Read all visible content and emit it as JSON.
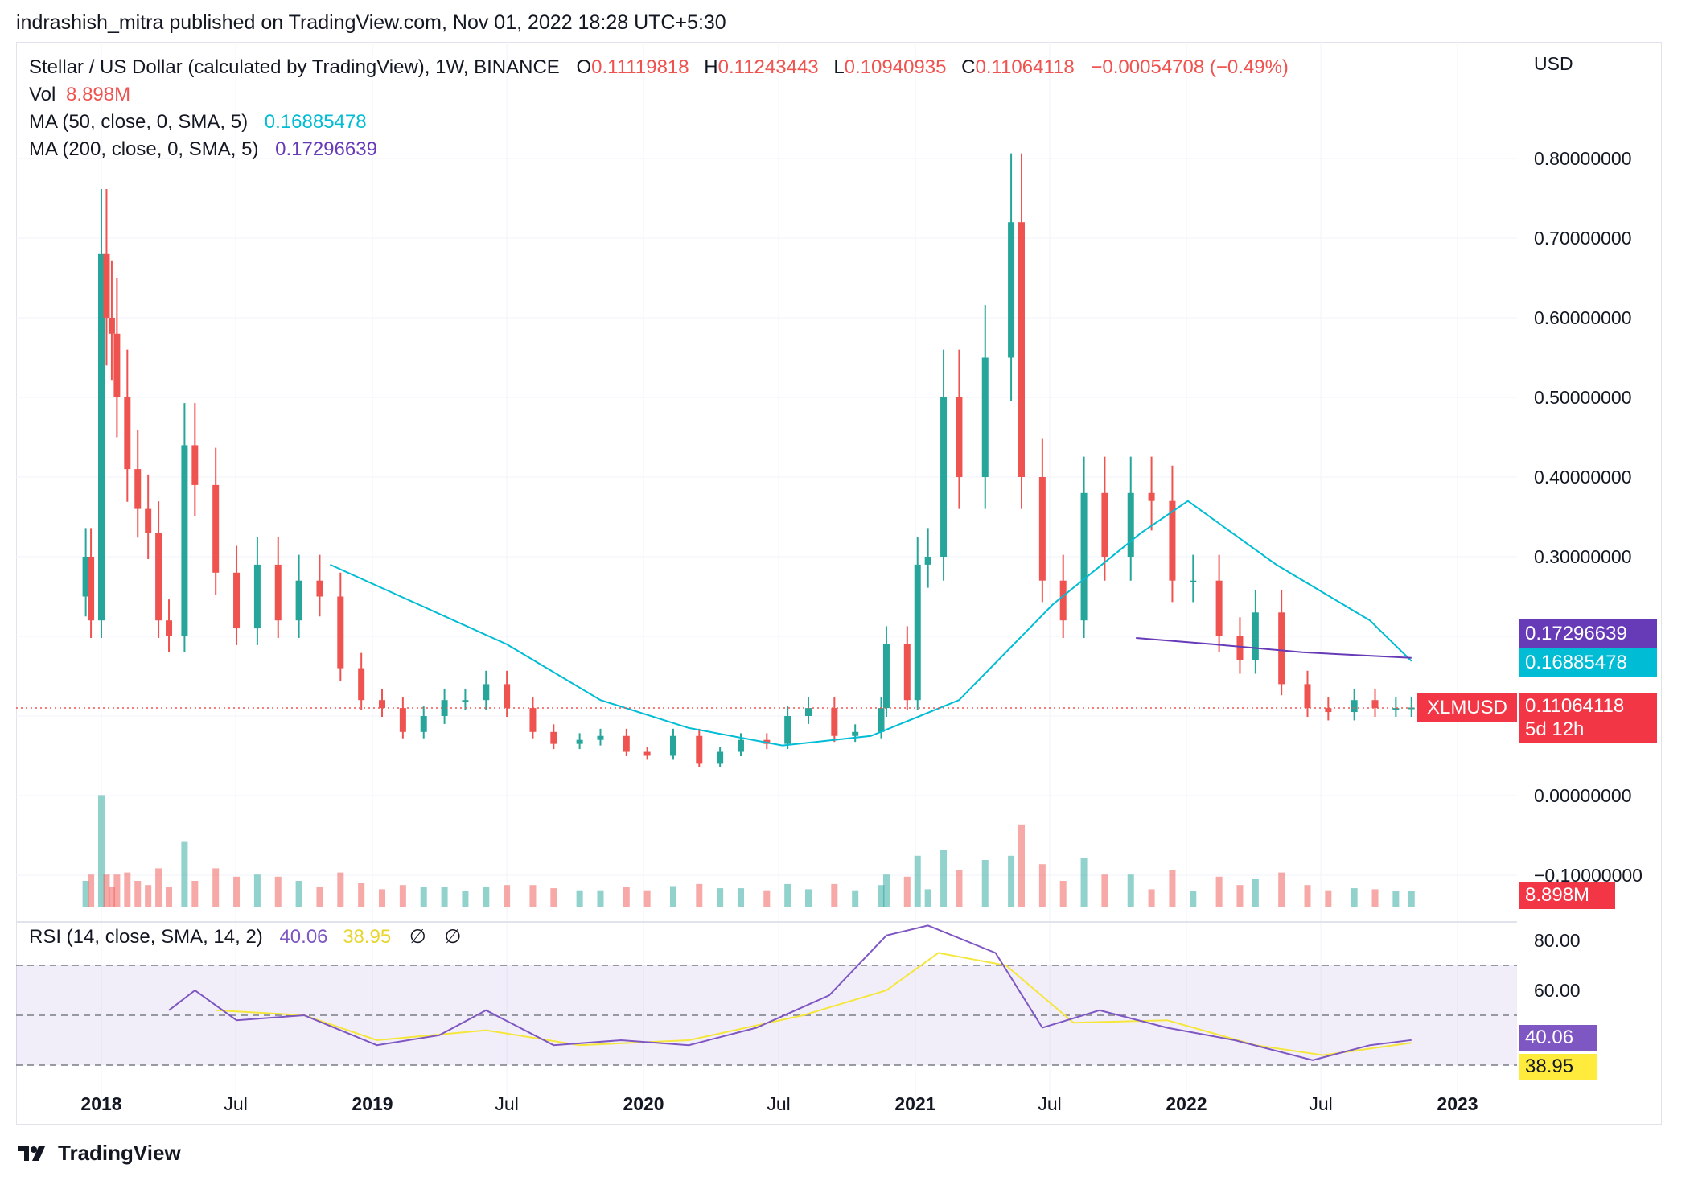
{
  "header": {
    "publish_line": "indrashish_mitra published on TradingView.com, Nov 01, 2022 18:28 UTC+5:30"
  },
  "legend": {
    "symbol": "Stellar / US Dollar (calculated by TradingView), 1W, BINANCE",
    "o_label": "O",
    "o_value": "0.11119818",
    "h_label": "H",
    "h_value": "0.11243443",
    "l_label": "L",
    "l_value": "0.10940935",
    "c_label": "C",
    "c_value": "0.11064118",
    "change": "−0.00054708 (−0.49%)",
    "vol_label": "Vol",
    "vol_value": "8.898M",
    "ma50_label": "MA (50, close, 0, SMA, 5)",
    "ma50_value": "0.16885478",
    "ma200_label": "MA (200, close, 0, SMA, 5)",
    "ma200_value": "0.17296639",
    "rsi_label": "RSI (14, close, SMA, 14, 2)",
    "rsi_value": "40.06",
    "rsi_ma_value": "38.95",
    "rsi_extra1": "∅",
    "rsi_extra2": "∅"
  },
  "price_axis": {
    "currency": "USD",
    "ticks": [
      "0.80000000",
      "0.70000000",
      "0.60000000",
      "0.50000000",
      "0.40000000",
      "0.30000000",
      "0.00000000",
      "−0.10000000"
    ]
  },
  "rsi_axis": {
    "ticks": [
      "80.00",
      "60.00"
    ]
  },
  "badges": {
    "ma200": "0.17296639",
    "ma50": "0.16885478",
    "symbol": "XLMUSD",
    "price": "0.11064118",
    "countdown": "5d 12h",
    "volume": "8.898M",
    "rsi": "40.06",
    "rsi_ma": "38.95"
  },
  "x_axis": {
    "labels": [
      "2018",
      "Jul",
      "2019",
      "Jul",
      "2020",
      "Jul",
      "2021",
      "Jul",
      "2022",
      "Jul",
      "2023"
    ]
  },
  "footer": {
    "brand": "TradingView"
  },
  "colors": {
    "up": "#26a69a",
    "down": "#ef5350",
    "ma50": "#00bcd4",
    "ma200": "#673ab7",
    "rsi": "#7e57c2",
    "rsi_ma": "#f5e63c",
    "price_line": "#ef5350"
  },
  "chart_data": {
    "type": "candlestick",
    "title": "Stellar / US Dollar (calculated by TradingView), 1W, BINANCE",
    "timeframe": "1W",
    "ylim": [
      -0.1,
      0.9
    ],
    "close_series": [
      {
        "date": "2017-12-04",
        "close": 0.25
      },
      {
        "date": "2017-12-11",
        "close": 0.3
      },
      {
        "date": "2017-12-18",
        "close": 0.22
      },
      {
        "date": "2018-01-01",
        "close": 0.68
      },
      {
        "date": "2018-01-08",
        "close": 0.6
      },
      {
        "date": "2018-01-15",
        "close": 0.58
      },
      {
        "date": "2018-01-22",
        "close": 0.5
      },
      {
        "date": "2018-02-05",
        "close": 0.41
      },
      {
        "date": "2018-02-19",
        "close": 0.36
      },
      {
        "date": "2018-03-05",
        "close": 0.33
      },
      {
        "date": "2018-03-19",
        "close": 0.22
      },
      {
        "date": "2018-04-02",
        "close": 0.2
      },
      {
        "date": "2018-04-23",
        "close": 0.44
      },
      {
        "date": "2018-05-07",
        "close": 0.39
      },
      {
        "date": "2018-06-04",
        "close": 0.28
      },
      {
        "date": "2018-07-02",
        "close": 0.21
      },
      {
        "date": "2018-07-30",
        "close": 0.29
      },
      {
        "date": "2018-08-27",
        "close": 0.22
      },
      {
        "date": "2018-09-24",
        "close": 0.27
      },
      {
        "date": "2018-10-22",
        "close": 0.25
      },
      {
        "date": "2018-11-19",
        "close": 0.16
      },
      {
        "date": "2018-12-17",
        "close": 0.12
      },
      {
        "date": "2019-01-14",
        "close": 0.11
      },
      {
        "date": "2019-02-11",
        "close": 0.08
      },
      {
        "date": "2019-03-11",
        "close": 0.1
      },
      {
        "date": "2019-04-08",
        "close": 0.12
      },
      {
        "date": "2019-05-06",
        "close": 0.12
      },
      {
        "date": "2019-06-03",
        "close": 0.14
      },
      {
        "date": "2019-07-01",
        "close": 0.11
      },
      {
        "date": "2019-08-05",
        "close": 0.08
      },
      {
        "date": "2019-09-02",
        "close": 0.065
      },
      {
        "date": "2019-10-07",
        "close": 0.07
      },
      {
        "date": "2019-11-04",
        "close": 0.075
      },
      {
        "date": "2019-12-09",
        "close": 0.055
      },
      {
        "date": "2020-01-06",
        "close": 0.05
      },
      {
        "date": "2020-02-10",
        "close": 0.075
      },
      {
        "date": "2020-03-16",
        "close": 0.04
      },
      {
        "date": "2020-04-13",
        "close": 0.055
      },
      {
        "date": "2020-05-11",
        "close": 0.07
      },
      {
        "date": "2020-06-15",
        "close": 0.065
      },
      {
        "date": "2020-07-13",
        "close": 0.1
      },
      {
        "date": "2020-08-10",
        "close": 0.11
      },
      {
        "date": "2020-09-14",
        "close": 0.075
      },
      {
        "date": "2020-10-12",
        "close": 0.08
      },
      {
        "date": "2020-11-16",
        "close": 0.11
      },
      {
        "date": "2020-11-23",
        "close": 0.19
      },
      {
        "date": "2020-12-21",
        "close": 0.12
      },
      {
        "date": "2021-01-04",
        "close": 0.29
      },
      {
        "date": "2021-01-18",
        "close": 0.3
      },
      {
        "date": "2021-02-08",
        "close": 0.5
      },
      {
        "date": "2021-03-01",
        "close": 0.4
      },
      {
        "date": "2021-04-05",
        "close": 0.55
      },
      {
        "date": "2021-05-10",
        "close": 0.72
      },
      {
        "date": "2021-05-24",
        "close": 0.4
      },
      {
        "date": "2021-06-21",
        "close": 0.27
      },
      {
        "date": "2021-07-19",
        "close": 0.22
      },
      {
        "date": "2021-08-16",
        "close": 0.38
      },
      {
        "date": "2021-09-13",
        "close": 0.3
      },
      {
        "date": "2021-10-18",
        "close": 0.38
      },
      {
        "date": "2021-11-15",
        "close": 0.37
      },
      {
        "date": "2021-12-13",
        "close": 0.27
      },
      {
        "date": "2022-01-10",
        "close": 0.27
      },
      {
        "date": "2022-02-14",
        "close": 0.2
      },
      {
        "date": "2022-03-14",
        "close": 0.17
      },
      {
        "date": "2022-04-04",
        "close": 0.23
      },
      {
        "date": "2022-05-09",
        "close": 0.14
      },
      {
        "date": "2022-06-13",
        "close": 0.11
      },
      {
        "date": "2022-07-11",
        "close": 0.105
      },
      {
        "date": "2022-08-15",
        "close": 0.12
      },
      {
        "date": "2022-09-12",
        "close": 0.11
      },
      {
        "date": "2022-10-10",
        "close": 0.11
      },
      {
        "date": "2022-10-31",
        "close": 0.11064118
      }
    ],
    "ma50": [
      {
        "date": "2018-11-05",
        "value": 0.29
      },
      {
        "date": "2019-03-04",
        "value": 0.24
      },
      {
        "date": "2019-07-01",
        "value": 0.19
      },
      {
        "date": "2019-11-04",
        "value": 0.12
      },
      {
        "date": "2020-03-02",
        "value": 0.085
      },
      {
        "date": "2020-07-06",
        "value": 0.063
      },
      {
        "date": "2020-11-02",
        "value": 0.075
      },
      {
        "date": "2021-03-01",
        "value": 0.12
      },
      {
        "date": "2021-07-05",
        "value": 0.24
      },
      {
        "date": "2021-11-01",
        "value": 0.33
      },
      {
        "date": "2022-01-03",
        "value": 0.37
      },
      {
        "date": "2022-05-02",
        "value": 0.29
      },
      {
        "date": "2022-09-05",
        "value": 0.22
      },
      {
        "date": "2022-10-31",
        "value": 0.16885478
      }
    ],
    "ma200": [
      {
        "date": "2021-10-25",
        "value": 0.198
      },
      {
        "date": "2022-02-07",
        "value": 0.19
      },
      {
        "date": "2022-06-06",
        "value": 0.18
      },
      {
        "date": "2022-10-31",
        "value": 0.17296639
      }
    ],
    "rsi": {
      "ylim": [
        30,
        90
      ],
      "bands": [
        70,
        50,
        30
      ],
      "rsi_series": [
        {
          "date": "2018-04-02",
          "value": 52
        },
        {
          "date": "2018-05-07",
          "value": 60
        },
        {
          "date": "2018-07-02",
          "value": 48
        },
        {
          "date": "2018-10-01",
          "value": 50
        },
        {
          "date": "2019-01-07",
          "value": 38
        },
        {
          "date": "2019-04-01",
          "value": 42
        },
        {
          "date": "2019-06-03",
          "value": 52
        },
        {
          "date": "2019-09-02",
          "value": 38
        },
        {
          "date": "2019-12-02",
          "value": 40
        },
        {
          "date": "2020-03-02",
          "value": 38
        },
        {
          "date": "2020-06-01",
          "value": 45
        },
        {
          "date": "2020-09-07",
          "value": 58
        },
        {
          "date": "2020-11-23",
          "value": 82
        },
        {
          "date": "2021-01-18",
          "value": 86
        },
        {
          "date": "2021-04-19",
          "value": 75
        },
        {
          "date": "2021-06-21",
          "value": 45
        },
        {
          "date": "2021-09-06",
          "value": 52
        },
        {
          "date": "2021-12-06",
          "value": 45
        },
        {
          "date": "2022-03-07",
          "value": 40
        },
        {
          "date": "2022-06-20",
          "value": 32
        },
        {
          "date": "2022-09-05",
          "value": 38
        },
        {
          "date": "2022-10-31",
          "value": 40.06
        }
      ],
      "rsi_ma_series": [
        {
          "date": "2018-06-04",
          "value": 52
        },
        {
          "date": "2018-10-01",
          "value": 50
        },
        {
          "date": "2019-01-07",
          "value": 40
        },
        {
          "date": "2019-06-03",
          "value": 44
        },
        {
          "date": "2019-10-07",
          "value": 38
        },
        {
          "date": "2020-03-02",
          "value": 40
        },
        {
          "date": "2020-08-03",
          "value": 50
        },
        {
          "date": "2020-11-23",
          "value": 60
        },
        {
          "date": "2021-02-01",
          "value": 75
        },
        {
          "date": "2021-05-03",
          "value": 70
        },
        {
          "date": "2021-08-02",
          "value": 47
        },
        {
          "date": "2021-12-06",
          "value": 48
        },
        {
          "date": "2022-04-04",
          "value": 38
        },
        {
          "date": "2022-07-04",
          "value": 34
        },
        {
          "date": "2022-10-31",
          "value": 38.95
        }
      ]
    }
  }
}
